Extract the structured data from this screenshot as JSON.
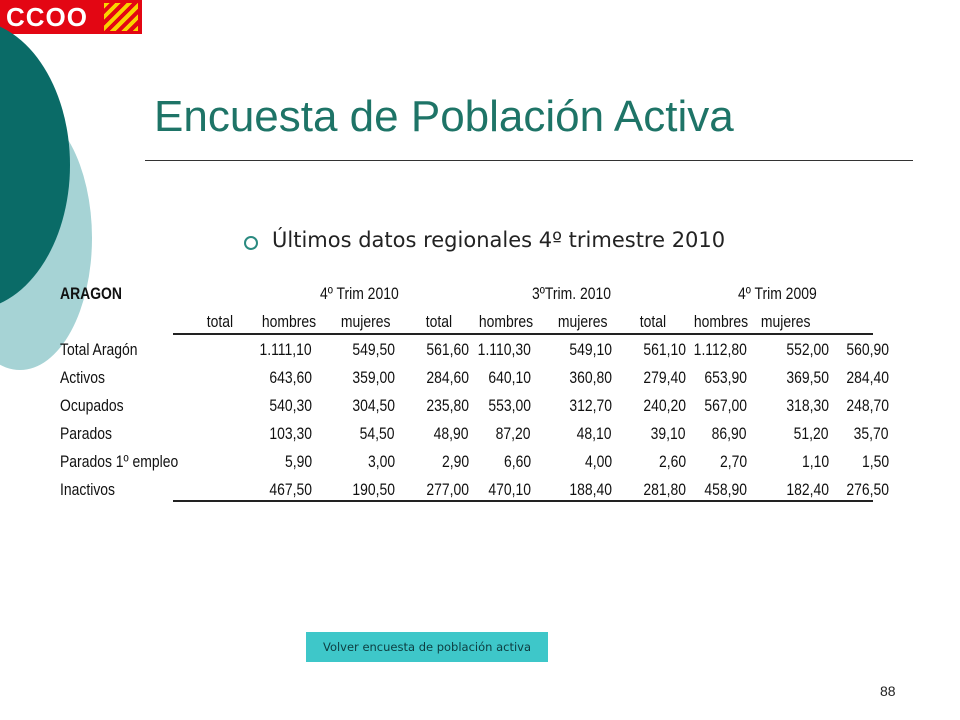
{
  "logo": {
    "text": "CCOO",
    "brand_color": "#e30613"
  },
  "slide": {
    "title": "Encuesta de Población Activa",
    "bullet": "Últimos datos regionales 4º trimestre 2010",
    "page_number": "88"
  },
  "table": {
    "region": "ARAGON",
    "periods": [
      "4º Trim 2010",
      "3ºTrim. 2010",
      "4º Trim 2009"
    ],
    "columns": [
      "total",
      "hombres",
      "mujeres",
      "total",
      "hombres",
      "mujeres",
      "total",
      "hombres",
      "mujeres"
    ],
    "rows": [
      {
        "label": "Total Aragón",
        "values": [
          "1.111,10",
          "549,50",
          "561,60",
          "1.110,30",
          "549,10",
          "561,10",
          "1.112,80",
          "552,00",
          "560,90"
        ]
      },
      {
        "label": "Activos",
        "values": [
          "643,60",
          "359,00",
          "284,60",
          "640,10",
          "360,80",
          "279,40",
          "653,90",
          "369,50",
          "284,40"
        ]
      },
      {
        "label": "Ocupados",
        "values": [
          "540,30",
          "304,50",
          "235,80",
          "553,00",
          "312,70",
          "240,20",
          "567,00",
          "318,30",
          "248,70"
        ]
      },
      {
        "label": "Parados",
        "values": [
          "103,30",
          "54,50",
          "48,90",
          "87,20",
          "48,10",
          "39,10",
          "86,90",
          "51,20",
          "35,70"
        ]
      },
      {
        "label": "Parados 1º empleo",
        "values": [
          "5,90",
          "3,00",
          "2,90",
          "6,60",
          "4,00",
          "2,60",
          "2,70",
          "1,10",
          "1,50"
        ]
      },
      {
        "label": "Inactivos",
        "values": [
          "467,50",
          "190,50",
          "277,00",
          "470,10",
          "188,40",
          "281,80",
          "458,90",
          "182,40",
          "276,50"
        ]
      }
    ]
  },
  "footer": {
    "link_label": "Volver encuesta de población  activa"
  },
  "colors": {
    "title": "#1e7467",
    "deco_dark": "#0a6b67",
    "deco_light": "#a6d3d5",
    "button": "#3ec7c9"
  }
}
